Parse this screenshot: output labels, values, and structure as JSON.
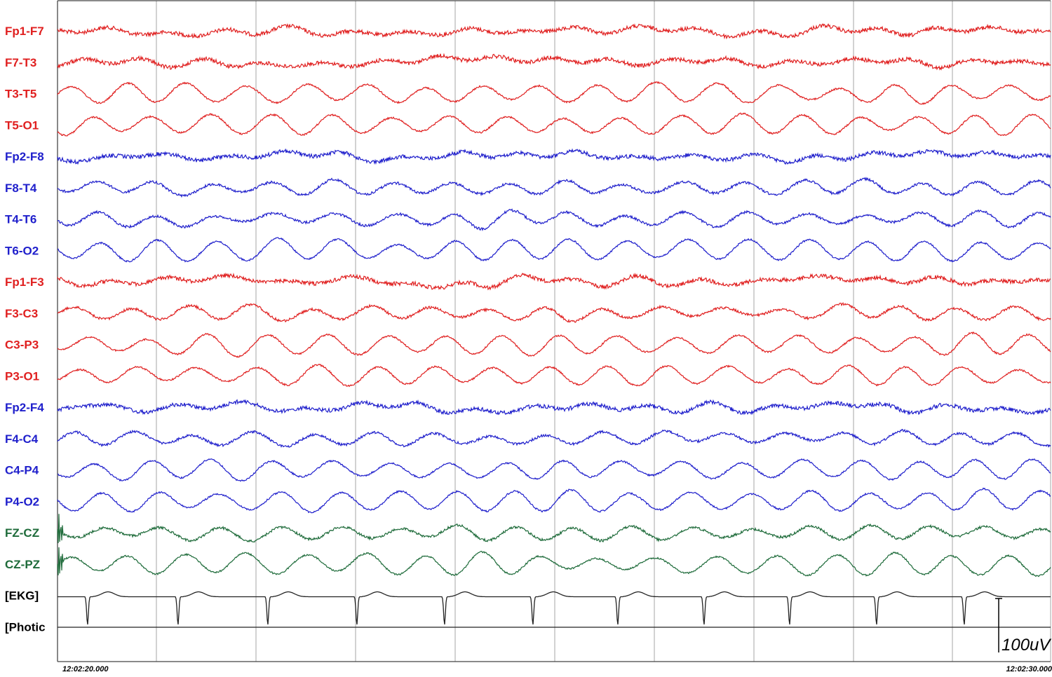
{
  "chart_data": {
    "type": "line",
    "time_start": "12:02:20.000",
    "time_end": "12:02:30.000",
    "seconds_per_gridline": 1,
    "scale_bar": "100uV",
    "grid": true,
    "colors": {
      "left_chain": "#e02020",
      "right_chain": "#2020cc",
      "midline": "#1e6b3a",
      "other": "#000000",
      "grid": "#b4b4b4"
    },
    "channels": [
      {
        "name": "Fp1-F7",
        "group": "left_chain"
      },
      {
        "name": "F7-T3",
        "group": "left_chain"
      },
      {
        "name": "T3-T5",
        "group": "left_chain"
      },
      {
        "name": "T5-O1",
        "group": "left_chain"
      },
      {
        "name": "Fp2-F8",
        "group": "right_chain"
      },
      {
        "name": "F8-T4",
        "group": "right_chain"
      },
      {
        "name": "T4-T6",
        "group": "right_chain"
      },
      {
        "name": "T6-O2",
        "group": "right_chain"
      },
      {
        "name": "Fp1-F3",
        "group": "left_chain"
      },
      {
        "name": "F3-C3",
        "group": "left_chain"
      },
      {
        "name": "C3-P3",
        "group": "left_chain"
      },
      {
        "name": "P3-O1",
        "group": "left_chain"
      },
      {
        "name": "Fp2-F4",
        "group": "right_chain"
      },
      {
        "name": "F4-C4",
        "group": "right_chain"
      },
      {
        "name": "C4-P4",
        "group": "right_chain"
      },
      {
        "name": "P4-O2",
        "group": "right_chain"
      },
      {
        "name": "FZ-CZ",
        "group": "midline"
      },
      {
        "name": "CZ-PZ",
        "group": "midline"
      },
      {
        "name": "[EKG]",
        "group": "other"
      },
      {
        "name": "[Photic",
        "group": "other"
      }
    ]
  }
}
